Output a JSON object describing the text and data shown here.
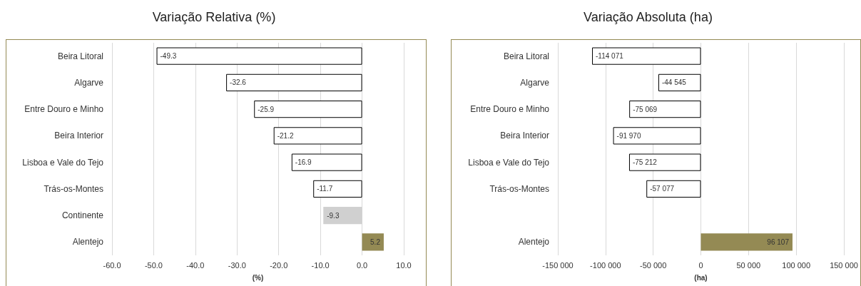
{
  "chart_data": [
    {
      "type": "bar",
      "orientation": "horizontal",
      "title": "Variação Relativa (%)",
      "xlabel": "(%)",
      "categories": [
        "Beira Litoral",
        "Algarve",
        "Entre Douro e Minho",
        "Beira Interior",
        "Lisboa e Vale do Tejo",
        "Trás-os-Montes",
        "Continente",
        "Alentejo"
      ],
      "values": [
        -49.3,
        -32.6,
        -25.9,
        -21.2,
        -16.9,
        -11.7,
        -9.3,
        5.2
      ],
      "value_labels": [
        "-49.3",
        "-32.6",
        "-25.9",
        "-21.2",
        "-16.9",
        "-11.7",
        "-9.3",
        "5.2"
      ],
      "colors": [
        "#ffffff",
        "#ffffff",
        "#ffffff",
        "#ffffff",
        "#ffffff",
        "#ffffff",
        "#d0d0d0",
        "#948a54"
      ],
      "xlim": [
        -60,
        10
      ],
      "xticks": [
        {
          "value": -60,
          "label": "-60.0"
        },
        {
          "value": -50,
          "label": "-50.0"
        },
        {
          "value": -40,
          "label": "-40.0"
        },
        {
          "value": -30,
          "label": "-30.0"
        },
        {
          "value": -20,
          "label": "-20.0"
        },
        {
          "value": -10,
          "label": "-10.0"
        },
        {
          "value": 0,
          "label": "0.0"
        },
        {
          "value": 10,
          "label": "10.0"
        }
      ],
      "grid": "x"
    },
    {
      "type": "bar",
      "orientation": "horizontal",
      "title": "Variação Absoluta (ha)",
      "xlabel": "(ha)",
      "categories": [
        "Beira Litoral",
        "Algarve",
        "Entre Douro e Minho",
        "Beira Interior",
        "Lisboa e Vale do Tejo",
        "Trás-os-Montes",
        null,
        "Alentejo"
      ],
      "values": [
        -114071,
        -44545,
        -75069,
        -91970,
        -75212,
        -57077,
        null,
        96107
      ],
      "value_labels": [
        "-114 071",
        "-44 545",
        "-75 069",
        "-91 970",
        "-75 212",
        "-57 077",
        null,
        "96 107"
      ],
      "colors": [
        "#ffffff",
        "#ffffff",
        "#ffffff",
        "#ffffff",
        "#ffffff",
        "#ffffff",
        null,
        "#948a54"
      ],
      "xlim": [
        -150000,
        150000
      ],
      "xticks": [
        {
          "value": -150000,
          "label": "-150 000"
        },
        {
          "value": -100000,
          "label": "-100 000"
        },
        {
          "value": -50000,
          "label": "-50 000"
        },
        {
          "value": 0,
          "label": "0"
        },
        {
          "value": 50000,
          "label": "50 000"
        },
        {
          "value": 100000,
          "label": "100 000"
        },
        {
          "value": 150000,
          "label": "150 000"
        }
      ],
      "grid": "x"
    }
  ]
}
